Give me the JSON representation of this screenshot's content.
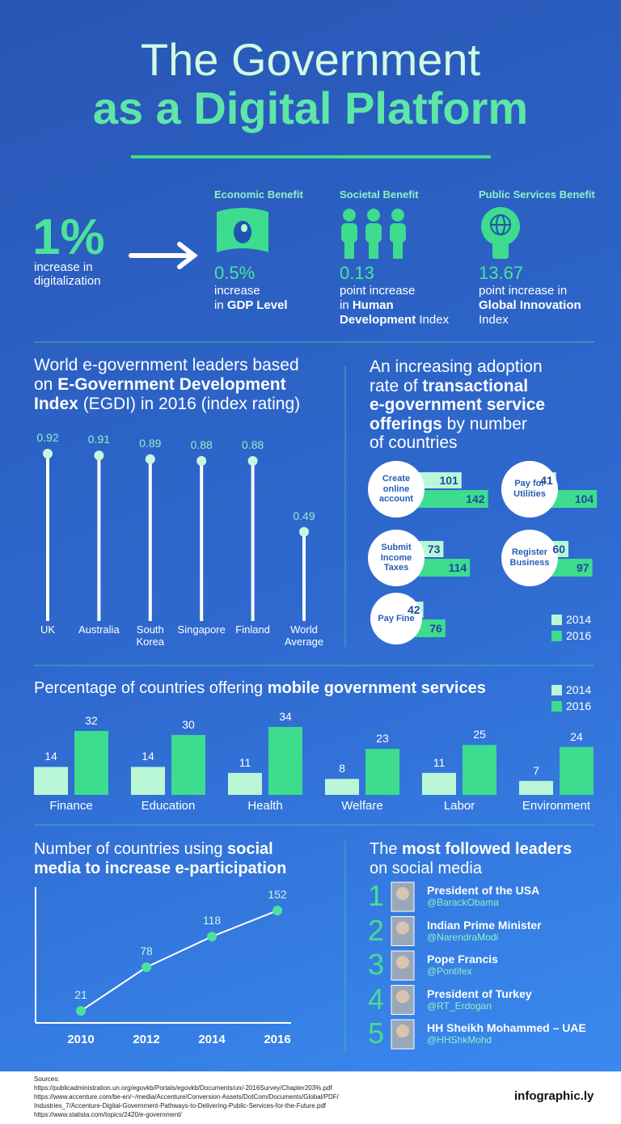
{
  "header": {
    "title": [
      "The Government",
      "as a Digital Platform"
    ]
  },
  "intro": {
    "value": "1%",
    "text": "increase in digitalization"
  },
  "benefits": [
    {
      "heading": "Economic Benefit",
      "value": "0.5%",
      "desc": [
        [
          {
            "text": "increase"
          }
        ],
        [
          {
            "text": "in "
          },
          {
            "text": "GDP Level",
            "bold": true
          }
        ]
      ]
    },
    {
      "heading": "Societal Benefit",
      "value": "0.13",
      "desc": [
        [
          {
            "text": "point increase"
          }
        ],
        [
          {
            "text": "in "
          },
          {
            "text": "Human",
            "bold": true
          }
        ],
        [
          {
            "text": "Development",
            "bold": true
          },
          {
            "text": " Index"
          }
        ]
      ]
    },
    {
      "heading": "Public Services Benefit",
      "value": "13.67",
      "desc": [
        [
          {
            "text": "point increase in"
          }
        ],
        [
          {
            "text": "Global Innovation",
            "bold": true
          }
        ],
        [
          {
            "text": "Index"
          }
        ]
      ]
    }
  ],
  "chart_data": [
    {
      "type": "lollipop",
      "title": [
        [
          {
            "text": "World e-government leaders based"
          }
        ],
        [
          {
            "text": "on "
          },
          {
            "text": "E-Government Development",
            "bold": true
          }
        ],
        [
          {
            "text": "Index",
            "bold": true
          },
          {
            "text": " (EGDI) in 2016 (index rating)"
          }
        ]
      ],
      "categories": [
        "UK",
        "Australia",
        "South Korea",
        "Singapore",
        "Finland",
        "World Average"
      ],
      "values": [
        0.92,
        0.91,
        0.89,
        0.88,
        0.88,
        0.49
      ],
      "ylim": [
        0,
        1
      ],
      "color": "#ffffff"
    },
    {
      "type": "hbar",
      "title": [
        [
          {
            "text": "An increasing adoption"
          }
        ],
        [
          {
            "text": "rate of "
          },
          {
            "text": "transactional",
            "bold": true
          }
        ],
        [
          {
            "text": "e-government service",
            "bold": true
          }
        ],
        [
          {
            "text": "offerings",
            "bold": true
          },
          {
            "text": " by number"
          }
        ],
        [
          {
            "text": "of countries"
          }
        ]
      ],
      "categories": [
        "Create online account",
        "Pay for Utilities",
        "Submit Income Taxes",
        "Register Business",
        "Pay Fine"
      ],
      "series": [
        {
          "name": "2014",
          "color": "#b9f7d6",
          "values": [
            101,
            41,
            73,
            60,
            42
          ]
        },
        {
          "name": "2016",
          "color": "#3ddc8e",
          "values": [
            142,
            104,
            114,
            97,
            76
          ]
        }
      ],
      "xlim": [
        0,
        150
      ],
      "legend": "bottom-right"
    },
    {
      "type": "bar",
      "title": [
        [
          {
            "text": "Percentage of countries offering "
          },
          {
            "text": "mobile government services",
            "bold": true
          }
        ]
      ],
      "categories": [
        "Finance",
        "Education",
        "Health",
        "Welfare",
        "Labor",
        "Environment"
      ],
      "series": [
        {
          "name": "2014",
          "color": "#b9f7d6",
          "values": [
            14,
            14,
            11,
            8,
            11,
            7
          ]
        },
        {
          "name": "2016",
          "color": "#3ddc8e",
          "values": [
            32,
            30,
            34,
            23,
            25,
            24
          ]
        }
      ],
      "ylim": [
        0,
        34
      ],
      "legend": "top-right"
    },
    {
      "type": "line",
      "title": [
        [
          {
            "text": "Number of countries using "
          },
          {
            "text": "social",
            "bold": true
          }
        ],
        [
          {
            "text": "media to increase e-participation",
            "bold": true
          }
        ]
      ],
      "categories": [
        "2010",
        "2012",
        "2014",
        "2016"
      ],
      "values": [
        21,
        78,
        118,
        152
      ],
      "ylim": [
        0,
        180
      ],
      "color": "#ffffff",
      "marker_color": "#4be39a"
    }
  ],
  "leaders": {
    "title": [
      [
        {
          "text": "The "
        },
        {
          "text": "most followed leaders",
          "bold": true
        }
      ],
      [
        {
          "text": "on social media"
        }
      ]
    ],
    "items": [
      {
        "rank": "1",
        "name": "President of the USA",
        "handle": "@BarackObama"
      },
      {
        "rank": "2",
        "name": "Indian Prime Minister",
        "handle": "@NarendraModi"
      },
      {
        "rank": "3",
        "name": "Pope Francis",
        "handle": "@Pontifex"
      },
      {
        "rank": "4",
        "name": "President of Turkey",
        "handle": "@RT_Erdogan"
      },
      {
        "rank": "5",
        "name": "HH Sheikh Mohammed – UAE",
        "handle": "@HHShkMohd"
      }
    ]
  },
  "sources": {
    "label": "Sources:",
    "lines": [
      "https://publicadministration.un.org/egovkb/Portals/egovkb/Documents/un/-2016Survey/Chapter203%.pdf",
      "https://www.accenture.com/be-en/~/media/Accenture/Conversion-Assets/DotCom/Documents/Global/PDF/",
      "Industries_7/Accenture-Digital-Government-Pathways-to-Delivering-Public-Services-for-the-Future.pdf",
      "https://www.statista.com/topics/2420/e-government/"
    ]
  },
  "brand": "infographic.ly"
}
